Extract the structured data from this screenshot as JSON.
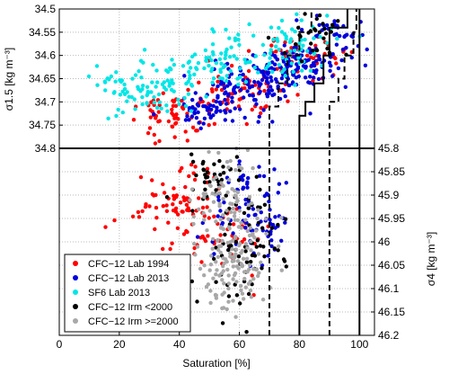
{
  "chart_data": {
    "type": "scatter",
    "xlabel": "Saturation [%]",
    "ylabel_top": "σ1.5 [kg m⁻³]",
    "ylabel_bottom": "σ4 [kg m⁻³]",
    "xlim": [
      0,
      105
    ],
    "ylim_top": [
      34.5,
      34.8
    ],
    "ylim_bottom": [
      45.8,
      46.2
    ],
    "x_ticks": [
      0,
      20,
      40,
      60,
      80,
      100
    ],
    "y_ticks_top": [
      34.5,
      34.55,
      34.6,
      34.65,
      34.7,
      34.75,
      34.8
    ],
    "y_ticks_bottom": [
      45.8,
      45.85,
      45.9,
      45.95,
      46,
      46.05,
      46.1,
      46.15,
      46.2
    ],
    "grid": true,
    "legend_position": "bottom-left",
    "series": [
      {
        "name": "CFC−12 Lab 1994",
        "color": "#ff0000",
        "panel_top": {
          "n": 170,
          "seed": 11,
          "clusters": [
            [
              38,
              34.73,
              8,
              0.025,
              0.4
            ],
            [
              60,
              34.68,
              10,
              0.03,
              0.35
            ],
            [
              80,
              34.6,
              8,
              0.025,
              0.25
            ]
          ]
        },
        "panel_bottom": {
          "n": 120,
          "seed": 12,
          "clusters": [
            [
              40,
              45.93,
              7,
              0.05,
              0.7
            ],
            [
              58,
              46.0,
              6,
              0.04,
              0.3
            ]
          ]
        }
      },
      {
        "name": "CFC−12 Lab 2013",
        "color": "#0000dd",
        "panel_top": {
          "n": 300,
          "seed": 21,
          "clusters": [
            [
              50,
              34.72,
              6,
              0.02,
              0.2
            ],
            [
              65,
              34.66,
              8,
              0.025,
              0.35
            ],
            [
              80,
              34.62,
              7,
              0.02,
              0.3
            ],
            [
              92,
              34.55,
              5,
              0.03,
              0.15
            ]
          ]
        },
        "panel_bottom": {
          "n": 90,
          "seed": 22,
          "clusters": [
            [
              62,
              45.92,
              6,
              0.05,
              0.6
            ],
            [
              68,
              45.97,
              3,
              0.03,
              0.4
            ]
          ]
        }
      },
      {
        "name": "SF6 Lab 2013",
        "color": "#00e6e6",
        "panel_top": {
          "n": 230,
          "seed": 31,
          "clusters": [
            [
              30,
              34.67,
              9,
              0.03,
              0.4
            ],
            [
              55,
              34.61,
              8,
              0.025,
              0.3
            ],
            [
              78,
              34.57,
              8,
              0.03,
              0.3
            ]
          ]
        },
        "panel_bottom": {
          "n": 0,
          "seed": 32,
          "clusters": []
        }
      },
      {
        "name": "CFC−12 Irm <2000",
        "color": "#000000",
        "panel_top": {
          "n": 30,
          "seed": 41,
          "clusters": [
            [
              85,
              34.56,
              6,
              0.03,
              1.0
            ]
          ]
        },
        "panel_bottom": {
          "n": 110,
          "seed": 42,
          "clusters": [
            [
              60,
              46.02,
              8,
              0.07,
              0.6
            ],
            [
              53,
              45.87,
              6,
              0.03,
              0.4
            ]
          ]
        }
      },
      {
        "name": "CFC−12 Irm >=2000",
        "color": "#a8a8a8",
        "panel_top": {
          "n": 0,
          "seed": 51,
          "clusters": []
        },
        "panel_bottom": {
          "n": 200,
          "seed": 52,
          "clusters": [
            [
              57,
              46.02,
              6,
              0.07,
              0.7
            ],
            [
              55,
              45.9,
              5,
              0.05,
              0.3
            ]
          ]
        }
      }
    ],
    "step_lines": [
      {
        "style": "solid",
        "points": [
          [
            80,
            45.8
          ],
          [
            80,
            46.2
          ],
          [
            80,
            34.8
          ],
          [
            80,
            34.73
          ],
          [
            82,
            34.73
          ],
          [
            82,
            34.7
          ],
          [
            85,
            34.7
          ],
          [
            85,
            34.66
          ],
          [
            88,
            34.66
          ],
          [
            88,
            34.6
          ],
          [
            90,
            34.6
          ],
          [
            90,
            34.54
          ],
          [
            96,
            34.54
          ],
          [
            96,
            34.5
          ]
        ]
      },
      {
        "style": "solid",
        "points": [
          [
            100,
            34.5
          ],
          [
            100,
            34.55
          ],
          [
            100,
            34.8
          ],
          [
            100,
            45.8
          ],
          [
            100,
            46.2
          ]
        ]
      },
      {
        "style": "dashed",
        "points": [
          [
            70,
            46.2
          ],
          [
            70,
            45.8
          ],
          [
            70,
            34.8
          ],
          [
            70,
            34.71
          ],
          [
            73,
            34.71
          ],
          [
            73,
            34.66
          ],
          [
            76,
            34.66
          ],
          [
            76,
            34.6
          ],
          [
            80,
            34.6
          ],
          [
            80,
            34.55
          ],
          [
            84,
            34.55
          ],
          [
            84,
            34.5
          ]
        ]
      },
      {
        "style": "dashed",
        "points": [
          [
            90,
            46.2
          ],
          [
            90,
            45.8
          ],
          [
            90,
            34.8
          ],
          [
            90,
            34.7
          ],
          [
            93,
            34.7
          ],
          [
            93,
            34.65
          ],
          [
            95,
            34.65
          ],
          [
            95,
            34.6
          ],
          [
            98,
            34.6
          ],
          [
            98,
            34.55
          ],
          [
            99,
            34.55
          ],
          [
            99,
            34.5
          ]
        ]
      }
    ]
  }
}
